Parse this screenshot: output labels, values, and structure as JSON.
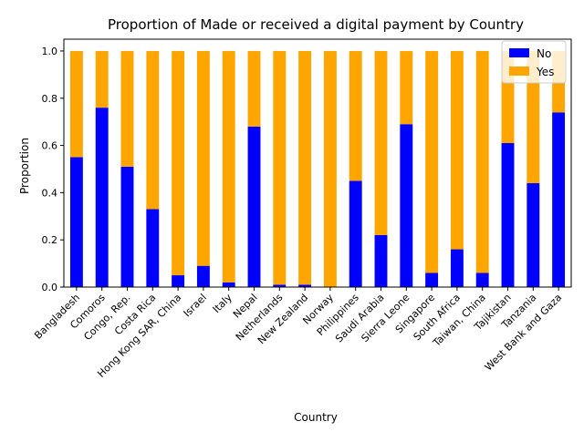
{
  "chart_data": {
    "type": "bar",
    "stacked": true,
    "title": "Proportion of Made or received a digital payment by Country",
    "xlabel": "Country",
    "ylabel": "Proportion",
    "ylim": [
      0,
      1.05
    ],
    "yticks": [
      "0.0",
      "0.2",
      "0.4",
      "0.6",
      "0.8",
      "1.0"
    ],
    "grid": false,
    "legend_position": "top-right",
    "categories": [
      "Bangladesh",
      "Comoros",
      "Congo, Rep.",
      "Costa Rica",
      "Hong Kong SAR, China",
      "Israel",
      "Italy",
      "Nepal",
      "Netherlands",
      "New Zealand",
      "Norway",
      "Philippines",
      "Saudi Arabia",
      "Sierra Leone",
      "Singapore",
      "South Africa",
      "Taiwan, China",
      "Tajikistan",
      "Tanzania",
      "West Bank and Gaza"
    ],
    "series": [
      {
        "name": "No",
        "color": "#0000ff",
        "values": [
          0.55,
          0.76,
          0.51,
          0.33,
          0.05,
          0.09,
          0.02,
          0.68,
          0.01,
          0.01,
          0.0,
          0.45,
          0.22,
          0.69,
          0.06,
          0.16,
          0.06,
          0.61,
          0.44,
          0.74
        ]
      },
      {
        "name": "Yes",
        "color": "#ffa500",
        "values": [
          0.45,
          0.24,
          0.49,
          0.67,
          0.95,
          0.91,
          0.98,
          0.32,
          0.99,
          0.99,
          1.0,
          0.55,
          0.78,
          0.31,
          0.94,
          0.84,
          0.94,
          0.39,
          0.56,
          0.26
        ]
      }
    ]
  }
}
